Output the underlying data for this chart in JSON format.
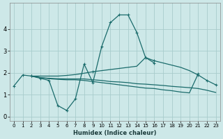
{
  "xlabel": "Humidex (Indice chaleur)",
  "bg_color": "#cde8e8",
  "grid_color": "#a8cccc",
  "line_color": "#1a6b6b",
  "ylim": [
    -0.2,
    5.2
  ],
  "xlim": [
    -0.5,
    23.5
  ],
  "yticks": [
    0,
    1,
    2,
    3,
    4
  ],
  "curve_main_x": [
    0,
    1,
    2,
    3,
    4,
    5,
    6,
    7,
    8,
    9,
    10,
    11,
    12,
    13,
    14,
    15,
    16
  ],
  "curve_main_y": [
    1.4,
    1.9,
    1.85,
    1.75,
    1.65,
    0.5,
    0.28,
    0.8,
    2.4,
    1.55,
    3.2,
    4.3,
    4.65,
    4.65,
    3.85,
    2.7,
    2.45
  ],
  "curve_upper_x": [
    2,
    3,
    4,
    5,
    6,
    7,
    8,
    9,
    10,
    11,
    12,
    13,
    14,
    15,
    16,
    17,
    18,
    19,
    20,
    21,
    22,
    23
  ],
  "curve_upper_y": [
    1.85,
    1.85,
    1.85,
    1.85,
    1.88,
    1.92,
    1.98,
    2.05,
    2.1,
    2.15,
    2.2,
    2.25,
    2.3,
    2.7,
    2.55,
    2.45,
    2.35,
    2.25,
    2.1,
    1.9,
    1.65,
    1.45
  ],
  "curve_mid_x": [
    2,
    3,
    4,
    5,
    6,
    7,
    8,
    9,
    10,
    11,
    12,
    13,
    14,
    15,
    16,
    17,
    18,
    19,
    20,
    21,
    22,
    23
  ],
  "curve_mid_y": [
    1.85,
    1.78,
    1.75,
    1.73,
    1.72,
    1.72,
    1.72,
    1.68,
    1.65,
    1.6,
    1.58,
    1.55,
    1.5,
    1.48,
    1.45,
    1.42,
    1.38,
    1.35,
    1.32,
    1.28,
    1.2,
    1.1
  ],
  "curve_low_x": [
    2,
    3,
    4,
    5,
    6,
    7,
    8,
    9,
    10,
    11,
    12,
    13,
    14,
    15,
    16,
    17,
    18,
    19,
    20,
    21
  ],
  "curve_low_y": [
    1.85,
    1.78,
    1.73,
    1.7,
    1.68,
    1.68,
    1.65,
    1.6,
    1.55,
    1.5,
    1.45,
    1.4,
    1.35,
    1.3,
    1.28,
    1.22,
    1.18,
    1.12,
    1.08,
    1.95
  ],
  "markers_main_x": [
    0,
    1,
    2,
    4,
    5,
    6,
    7,
    8,
    9,
    10,
    11,
    12,
    13,
    14,
    15,
    16
  ],
  "markers_main_y": [
    1.4,
    1.9,
    1.85,
    1.65,
    0.5,
    0.28,
    0.8,
    2.4,
    1.55,
    3.2,
    4.3,
    4.65,
    4.65,
    3.85,
    2.7,
    2.45
  ],
  "markers_upper_x": [
    2,
    9,
    15,
    16,
    21,
    22,
    23
  ],
  "markers_upper_y": [
    1.85,
    2.05,
    2.7,
    2.55,
    1.9,
    1.65,
    1.45
  ],
  "markers_low_x": [
    21
  ],
  "markers_low_y": [
    1.95
  ]
}
